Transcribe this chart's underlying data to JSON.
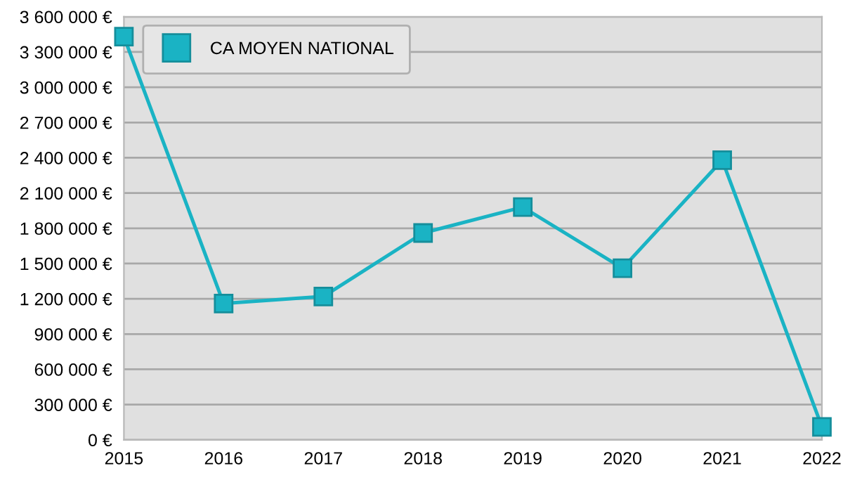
{
  "chart_data": {
    "type": "line",
    "x": [
      2015,
      2016,
      2017,
      2018,
      2019,
      2020,
      2021,
      2022
    ],
    "series": [
      {
        "name": "CA MOYEN NATIONAL",
        "color": "#1ab3c4",
        "values": [
          3430000,
          1160000,
          1220000,
          1760000,
          1980000,
          1460000,
          2380000,
          110000
        ]
      }
    ],
    "xlim": [
      2015,
      2022
    ],
    "xticks": [
      2015,
      2016,
      2017,
      2018,
      2019,
      2020,
      2021,
      2022
    ],
    "ylim": [
      0,
      3600000
    ],
    "yticks": [
      {
        "value": 0,
        "label": "0 €"
      },
      {
        "value": 300000,
        "label": "300 000 €"
      },
      {
        "value": 600000,
        "label": "600 000 €"
      },
      {
        "value": 900000,
        "label": "900 000 €"
      },
      {
        "value": 1200000,
        "label": "1 200 000 €"
      },
      {
        "value": 1500000,
        "label": "1 500 000 €"
      },
      {
        "value": 1800000,
        "label": "1 800 000 €"
      },
      {
        "value": 2100000,
        "label": "2 100 000 €"
      },
      {
        "value": 2400000,
        "label": "2 400 000 €"
      },
      {
        "value": 2700000,
        "label": "2 700 000 €"
      },
      {
        "value": 3000000,
        "label": "3 000 000 €"
      },
      {
        "value": 3300000,
        "label": "3 300 000 €"
      },
      {
        "value": 3600000,
        "label": "3 600 000 €"
      }
    ],
    "grid": "y",
    "legend": "top left",
    "marker": "square",
    "line_style": "solid"
  }
}
